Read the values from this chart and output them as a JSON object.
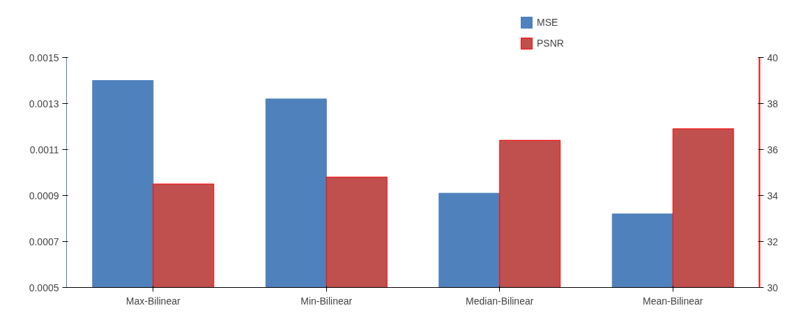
{
  "chart_data": {
    "type": "bar",
    "categories": [
      "Max-Bilinear",
      "Min-Bilinear",
      "Median-Bilinear",
      "Mean-Bilinear"
    ],
    "series": [
      {
        "name": "MSE",
        "color": "#4f81bd",
        "values": [
          0.0014,
          0.00132,
          0.00091,
          0.00082
        ]
      },
      {
        "name": "PSNR",
        "color": "#c0504d",
        "axis": "y2",
        "values": [
          34.5,
          34.8,
          36.4,
          36.9
        ]
      }
    ],
    "ylim": [
      0.0005,
      0.0015
    ],
    "yticks": [
      0.0005,
      0.0007,
      0.0009,
      0.0011,
      0.0013,
      0.0015
    ],
    "y2lim": [
      30,
      40
    ],
    "y2ticks": [
      30,
      32,
      34,
      36,
      38,
      40
    ],
    "grid": false,
    "legend": "top"
  }
}
